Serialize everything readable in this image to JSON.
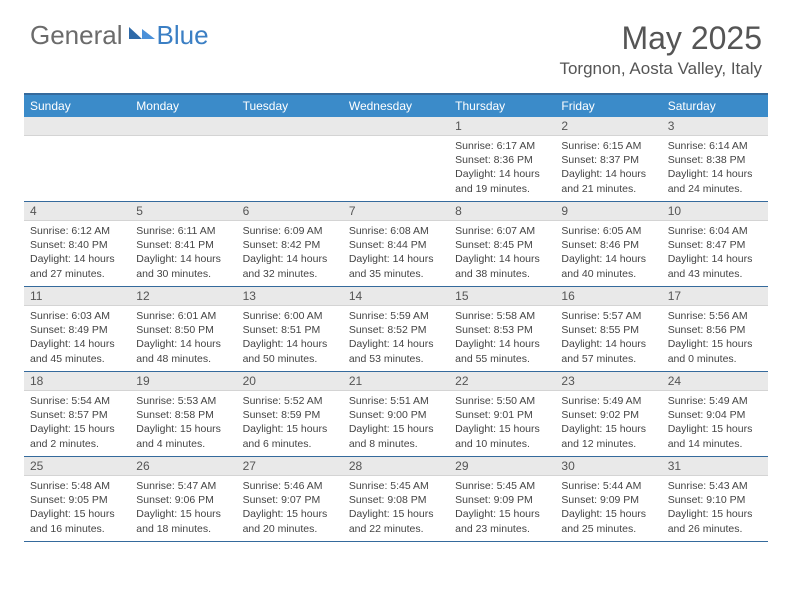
{
  "brand": {
    "general": "General",
    "blue": "Blue"
  },
  "title": "May 2025",
  "location": "Torgnon, Aosta Valley, Italy",
  "colors": {
    "header_bar": "#3b8bc9",
    "header_border": "#356a9c",
    "daynum_bg": "#e9e9e9",
    "text": "#444444",
    "logo_gray": "#6b6b6b",
    "logo_blue": "#3b7fc4"
  },
  "weekdays": [
    "Sunday",
    "Monday",
    "Tuesday",
    "Wednesday",
    "Thursday",
    "Friday",
    "Saturday"
  ],
  "weeks": [
    [
      {
        "n": "",
        "sunrise": "",
        "sunset": "",
        "daylight": ""
      },
      {
        "n": "",
        "sunrise": "",
        "sunset": "",
        "daylight": ""
      },
      {
        "n": "",
        "sunrise": "",
        "sunset": "",
        "daylight": ""
      },
      {
        "n": "",
        "sunrise": "",
        "sunset": "",
        "daylight": ""
      },
      {
        "n": "1",
        "sunrise": "Sunrise: 6:17 AM",
        "sunset": "Sunset: 8:36 PM",
        "daylight": "Daylight: 14 hours and 19 minutes."
      },
      {
        "n": "2",
        "sunrise": "Sunrise: 6:15 AM",
        "sunset": "Sunset: 8:37 PM",
        "daylight": "Daylight: 14 hours and 21 minutes."
      },
      {
        "n": "3",
        "sunrise": "Sunrise: 6:14 AM",
        "sunset": "Sunset: 8:38 PM",
        "daylight": "Daylight: 14 hours and 24 minutes."
      }
    ],
    [
      {
        "n": "4",
        "sunrise": "Sunrise: 6:12 AM",
        "sunset": "Sunset: 8:40 PM",
        "daylight": "Daylight: 14 hours and 27 minutes."
      },
      {
        "n": "5",
        "sunrise": "Sunrise: 6:11 AM",
        "sunset": "Sunset: 8:41 PM",
        "daylight": "Daylight: 14 hours and 30 minutes."
      },
      {
        "n": "6",
        "sunrise": "Sunrise: 6:09 AM",
        "sunset": "Sunset: 8:42 PM",
        "daylight": "Daylight: 14 hours and 32 minutes."
      },
      {
        "n": "7",
        "sunrise": "Sunrise: 6:08 AM",
        "sunset": "Sunset: 8:44 PM",
        "daylight": "Daylight: 14 hours and 35 minutes."
      },
      {
        "n": "8",
        "sunrise": "Sunrise: 6:07 AM",
        "sunset": "Sunset: 8:45 PM",
        "daylight": "Daylight: 14 hours and 38 minutes."
      },
      {
        "n": "9",
        "sunrise": "Sunrise: 6:05 AM",
        "sunset": "Sunset: 8:46 PM",
        "daylight": "Daylight: 14 hours and 40 minutes."
      },
      {
        "n": "10",
        "sunrise": "Sunrise: 6:04 AM",
        "sunset": "Sunset: 8:47 PM",
        "daylight": "Daylight: 14 hours and 43 minutes."
      }
    ],
    [
      {
        "n": "11",
        "sunrise": "Sunrise: 6:03 AM",
        "sunset": "Sunset: 8:49 PM",
        "daylight": "Daylight: 14 hours and 45 minutes."
      },
      {
        "n": "12",
        "sunrise": "Sunrise: 6:01 AM",
        "sunset": "Sunset: 8:50 PM",
        "daylight": "Daylight: 14 hours and 48 minutes."
      },
      {
        "n": "13",
        "sunrise": "Sunrise: 6:00 AM",
        "sunset": "Sunset: 8:51 PM",
        "daylight": "Daylight: 14 hours and 50 minutes."
      },
      {
        "n": "14",
        "sunrise": "Sunrise: 5:59 AM",
        "sunset": "Sunset: 8:52 PM",
        "daylight": "Daylight: 14 hours and 53 minutes."
      },
      {
        "n": "15",
        "sunrise": "Sunrise: 5:58 AM",
        "sunset": "Sunset: 8:53 PM",
        "daylight": "Daylight: 14 hours and 55 minutes."
      },
      {
        "n": "16",
        "sunrise": "Sunrise: 5:57 AM",
        "sunset": "Sunset: 8:55 PM",
        "daylight": "Daylight: 14 hours and 57 minutes."
      },
      {
        "n": "17",
        "sunrise": "Sunrise: 5:56 AM",
        "sunset": "Sunset: 8:56 PM",
        "daylight": "Daylight: 15 hours and 0 minutes."
      }
    ],
    [
      {
        "n": "18",
        "sunrise": "Sunrise: 5:54 AM",
        "sunset": "Sunset: 8:57 PM",
        "daylight": "Daylight: 15 hours and 2 minutes."
      },
      {
        "n": "19",
        "sunrise": "Sunrise: 5:53 AM",
        "sunset": "Sunset: 8:58 PM",
        "daylight": "Daylight: 15 hours and 4 minutes."
      },
      {
        "n": "20",
        "sunrise": "Sunrise: 5:52 AM",
        "sunset": "Sunset: 8:59 PM",
        "daylight": "Daylight: 15 hours and 6 minutes."
      },
      {
        "n": "21",
        "sunrise": "Sunrise: 5:51 AM",
        "sunset": "Sunset: 9:00 PM",
        "daylight": "Daylight: 15 hours and 8 minutes."
      },
      {
        "n": "22",
        "sunrise": "Sunrise: 5:50 AM",
        "sunset": "Sunset: 9:01 PM",
        "daylight": "Daylight: 15 hours and 10 minutes."
      },
      {
        "n": "23",
        "sunrise": "Sunrise: 5:49 AM",
        "sunset": "Sunset: 9:02 PM",
        "daylight": "Daylight: 15 hours and 12 minutes."
      },
      {
        "n": "24",
        "sunrise": "Sunrise: 5:49 AM",
        "sunset": "Sunset: 9:04 PM",
        "daylight": "Daylight: 15 hours and 14 minutes."
      }
    ],
    [
      {
        "n": "25",
        "sunrise": "Sunrise: 5:48 AM",
        "sunset": "Sunset: 9:05 PM",
        "daylight": "Daylight: 15 hours and 16 minutes."
      },
      {
        "n": "26",
        "sunrise": "Sunrise: 5:47 AM",
        "sunset": "Sunset: 9:06 PM",
        "daylight": "Daylight: 15 hours and 18 minutes."
      },
      {
        "n": "27",
        "sunrise": "Sunrise: 5:46 AM",
        "sunset": "Sunset: 9:07 PM",
        "daylight": "Daylight: 15 hours and 20 minutes."
      },
      {
        "n": "28",
        "sunrise": "Sunrise: 5:45 AM",
        "sunset": "Sunset: 9:08 PM",
        "daylight": "Daylight: 15 hours and 22 minutes."
      },
      {
        "n": "29",
        "sunrise": "Sunrise: 5:45 AM",
        "sunset": "Sunset: 9:09 PM",
        "daylight": "Daylight: 15 hours and 23 minutes."
      },
      {
        "n": "30",
        "sunrise": "Sunrise: 5:44 AM",
        "sunset": "Sunset: 9:09 PM",
        "daylight": "Daylight: 15 hours and 25 minutes."
      },
      {
        "n": "31",
        "sunrise": "Sunrise: 5:43 AM",
        "sunset": "Sunset: 9:10 PM",
        "daylight": "Daylight: 15 hours and 26 minutes."
      }
    ]
  ]
}
